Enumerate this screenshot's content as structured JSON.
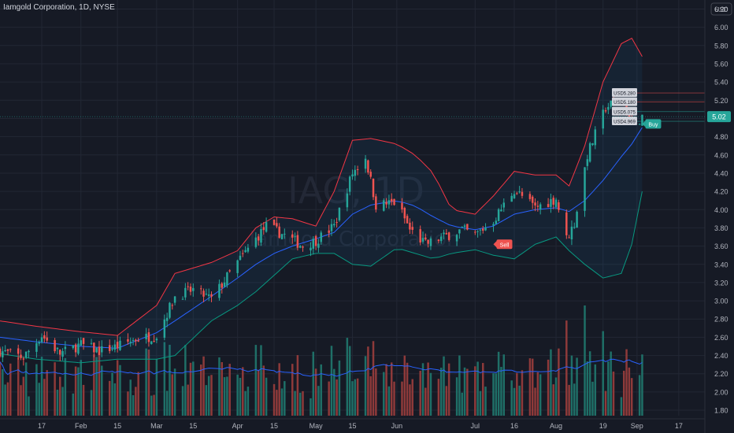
{
  "header": {
    "title": "Iamgold Corporation, 1D, NYSE",
    "currency": "USD"
  },
  "watermark": {
    "symbol": "IAG, 1D",
    "company": "Iamgold Corporation"
  },
  "colors": {
    "bg": "#161a25",
    "up": "#26a69a",
    "down": "#ef5350",
    "vol_up": "#1f6f67",
    "vol_down": "#8e3a3a",
    "basis": "#2962ff",
    "upper": "#f23645",
    "lower": "#089981",
    "fill": "#2196f3",
    "grid": "#222734",
    "text": "#b2b5be",
    "price_tag": "#26a69a"
  },
  "price_label": {
    "value": "5.02"
  },
  "signals": [
    {
      "label": "Sell",
      "price": 3.62,
      "date": "2024-07-08"
    },
    {
      "label": "Buy",
      "price": 4.94,
      "date": "2024-09-03"
    }
  ],
  "orders": [
    {
      "label": "USD5.280",
      "price": 5.28
    },
    {
      "label": "USD5.180",
      "price": 5.18
    },
    {
      "label": "USD5.075",
      "price": 5.075
    },
    {
      "label": "USD4.969",
      "price": 4.969
    }
  ],
  "chart_data": {
    "type": "candlestick",
    "title": "Iamgold Corporation, 1D, NYSE",
    "y_axis": {
      "ticks": [
        "1.80",
        "2.00",
        "2.20",
        "2.40",
        "2.60",
        "2.80",
        "3.00",
        "3.20",
        "3.40",
        "3.60",
        "3.80",
        "4.00",
        "4.20",
        "4.40",
        "4.60",
        "4.80",
        "5.00",
        "5.20",
        "5.40",
        "5.60",
        "5.80",
        "6.00",
        "6.20"
      ],
      "range": [
        1.74,
        6.23
      ]
    },
    "x_axis": {
      "ticks": [
        {
          "label": "17",
          "date": "2024-01-17"
        },
        {
          "label": "Feb",
          "date": "2024-02-01"
        },
        {
          "label": "15",
          "date": "2024-02-15"
        },
        {
          "label": "Mar",
          "date": "2024-03-01"
        },
        {
          "label": "15",
          "date": "2024-03-15"
        },
        {
          "label": "Apr",
          "date": "2024-04-01"
        },
        {
          "label": "15",
          "date": "2024-04-15"
        },
        {
          "label": "May",
          "date": "2024-05-01"
        },
        {
          "label": "15",
          "date": "2024-05-15"
        },
        {
          "label": "Jun",
          "date": "2024-06-01"
        },
        {
          "label": "Jul",
          "date": "2024-07-01"
        },
        {
          "label": "16",
          "date": "2024-07-16"
        },
        {
          "label": "Aug",
          "date": "2024-08-01"
        },
        {
          "label": "19",
          "date": "2024-08-19"
        },
        {
          "label": "Sep",
          "date": "2024-09-01"
        },
        {
          "label": "17",
          "date": "2024-09-17"
        }
      ],
      "range": [
        "2024-01-01",
        "2024-09-27"
      ]
    },
    "bollinger_keyframes": [
      {
        "date": "2024-01-01",
        "upper": 2.78,
        "basis": 2.6,
        "lower": 2.42
      },
      {
        "date": "2024-01-15",
        "upper": 2.72,
        "basis": 2.55,
        "lower": 2.36
      },
      {
        "date": "2024-02-01",
        "upper": 2.66,
        "basis": 2.5,
        "lower": 2.32
      },
      {
        "date": "2024-02-15",
        "upper": 2.62,
        "basis": 2.48,
        "lower": 2.36
      },
      {
        "date": "2024-03-01",
        "upper": 2.95,
        "basis": 2.65,
        "lower": 2.36
      },
      {
        "date": "2024-03-08",
        "upper": 3.3,
        "basis": 2.78,
        "lower": 2.4
      },
      {
        "date": "2024-03-22",
        "upper": 3.42,
        "basis": 3.05,
        "lower": 2.78
      },
      {
        "date": "2024-04-01",
        "upper": 3.55,
        "basis": 3.25,
        "lower": 2.95
      },
      {
        "date": "2024-04-08",
        "upper": 3.8,
        "basis": 3.4,
        "lower": 3.1
      },
      {
        "date": "2024-04-15",
        "upper": 3.92,
        "basis": 3.52,
        "lower": 3.28
      },
      {
        "date": "2024-04-22",
        "upper": 3.9,
        "basis": 3.6,
        "lower": 3.46
      },
      {
        "date": "2024-05-01",
        "upper": 3.82,
        "basis": 3.68,
        "lower": 3.52
      },
      {
        "date": "2024-05-08",
        "upper": 4.2,
        "basis": 3.75,
        "lower": 3.52
      },
      {
        "date": "2024-05-15",
        "upper": 4.76,
        "basis": 3.95,
        "lower": 3.4
      },
      {
        "date": "2024-05-22",
        "upper": 4.78,
        "basis": 4.05,
        "lower": 3.38
      },
      {
        "date": "2024-06-01",
        "upper": 4.72,
        "basis": 4.1,
        "lower": 3.58
      },
      {
        "date": "2024-06-08",
        "upper": 4.6,
        "basis": 4.04,
        "lower": 3.52
      },
      {
        "date": "2024-06-15",
        "upper": 4.4,
        "basis": 3.92,
        "lower": 3.46
      },
      {
        "date": "2024-06-22",
        "upper": 4.0,
        "basis": 3.82,
        "lower": 3.52
      },
      {
        "date": "2024-07-01",
        "upper": 3.95,
        "basis": 3.78,
        "lower": 3.56
      },
      {
        "date": "2024-07-08",
        "upper": 4.15,
        "basis": 3.82,
        "lower": 3.5
      },
      {
        "date": "2024-07-16",
        "upper": 4.42,
        "basis": 3.95,
        "lower": 3.46
      },
      {
        "date": "2024-07-24",
        "upper": 4.38,
        "basis": 4.0,
        "lower": 3.62
      },
      {
        "date": "2024-08-01",
        "upper": 4.38,
        "basis": 4.02,
        "lower": 3.7
      },
      {
        "date": "2024-08-06",
        "upper": 4.26,
        "basis": 3.98,
        "lower": 3.55
      },
      {
        "date": "2024-08-12",
        "upper": 4.7,
        "basis": 4.1,
        "lower": 3.4
      },
      {
        "date": "2024-08-19",
        "upper": 5.4,
        "basis": 4.32,
        "lower": 3.25
      },
      {
        "date": "2024-08-26",
        "upper": 5.82,
        "basis": 4.58,
        "lower": 3.3
      },
      {
        "date": "2024-08-30",
        "upper": 5.88,
        "basis": 4.72,
        "lower": 3.62
      },
      {
        "date": "2024-09-03",
        "upper": 5.68,
        "basis": 4.9,
        "lower": 4.2
      }
    ],
    "close_keyframes": [
      {
        "date": "2024-01-01",
        "close": 2.45
      },
      {
        "date": "2024-01-10",
        "close": 2.38
      },
      {
        "date": "2024-01-17",
        "close": 2.62
      },
      {
        "date": "2024-01-24",
        "close": 2.42
      },
      {
        "date": "2024-02-01",
        "close": 2.52
      },
      {
        "date": "2024-02-08",
        "close": 2.45
      },
      {
        "date": "2024-02-15",
        "close": 2.5
      },
      {
        "date": "2024-02-22",
        "close": 2.58
      },
      {
        "date": "2024-03-01",
        "close": 2.62
      },
      {
        "date": "2024-03-08",
        "close": 3.05
      },
      {
        "date": "2024-03-15",
        "close": 3.12
      },
      {
        "date": "2024-03-22",
        "close": 3.02
      },
      {
        "date": "2024-04-01",
        "close": 3.42
      },
      {
        "date": "2024-04-08",
        "close": 3.68
      },
      {
        "date": "2024-04-12",
        "close": 3.82
      },
      {
        "date": "2024-04-19",
        "close": 3.72
      },
      {
        "date": "2024-04-26",
        "close": 3.6
      },
      {
        "date": "2024-05-01",
        "close": 3.66
      },
      {
        "date": "2024-05-08",
        "close": 3.82
      },
      {
        "date": "2024-05-15",
        "close": 4.4
      },
      {
        "date": "2024-05-20",
        "close": 4.58
      },
      {
        "date": "2024-05-24",
        "close": 4.05
      },
      {
        "date": "2024-06-01",
        "close": 4.08
      },
      {
        "date": "2024-06-06",
        "close": 3.78
      },
      {
        "date": "2024-06-12",
        "close": 3.62
      },
      {
        "date": "2024-06-19",
        "close": 3.7
      },
      {
        "date": "2024-06-26",
        "close": 3.78
      },
      {
        "date": "2024-07-01",
        "close": 3.72
      },
      {
        "date": "2024-07-08",
        "close": 3.88
      },
      {
        "date": "2024-07-16",
        "close": 4.22
      },
      {
        "date": "2024-07-24",
        "close": 4.02
      },
      {
        "date": "2024-08-01",
        "close": 4.12
      },
      {
        "date": "2024-08-05",
        "close": 3.68
      },
      {
        "date": "2024-08-08",
        "close": 3.85
      },
      {
        "date": "2024-08-13",
        "close": 4.6
      },
      {
        "date": "2024-08-20",
        "close": 5.12
      },
      {
        "date": "2024-08-26",
        "close": 5.22
      },
      {
        "date": "2024-08-30",
        "close": 4.92
      },
      {
        "date": "2024-09-03",
        "close": 5.02
      }
    ],
    "legend": "none",
    "grid": true
  }
}
